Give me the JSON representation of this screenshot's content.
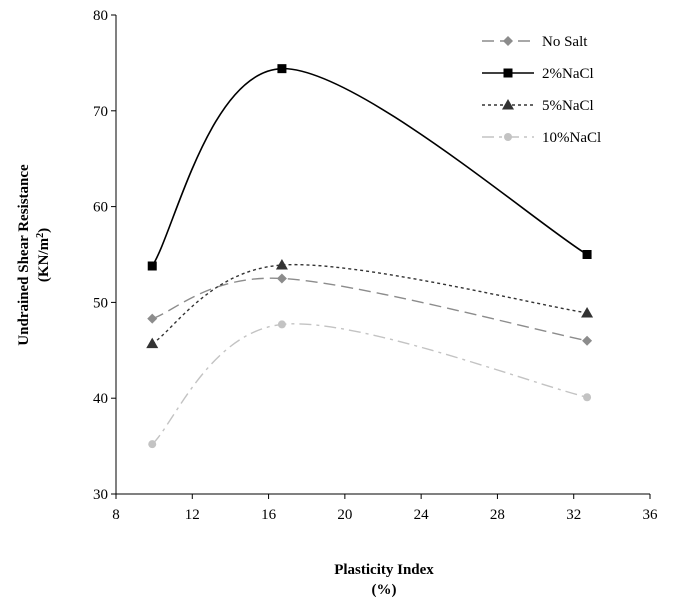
{
  "chart_data": {
    "type": "line",
    "title": "",
    "xlabel": "Plasticity Index",
    "xlabel_unit": "(%)",
    "ylabel": "Undrained Shear Resistance",
    "ylabel_unit_base": "(KN/m",
    "ylabel_unit_sup": "2",
    "ylabel_unit_end": ")",
    "xlim": [
      8,
      36
    ],
    "ylim": [
      30,
      80
    ],
    "xticks": [
      8,
      12,
      16,
      20,
      24,
      28,
      32,
      36
    ],
    "yticks": [
      30,
      40,
      50,
      60,
      70,
      80
    ],
    "grid": false,
    "legend_position": "top-right",
    "series": [
      {
        "name": "No Salt",
        "color": "#8c8c8c",
        "marker": "diamond",
        "dash": "dash",
        "x": [
          9.9,
          16.7,
          32.7
        ],
        "y": [
          48.3,
          52.5,
          46.0
        ]
      },
      {
        "name": "2%NaCl",
        "color": "#000000",
        "marker": "square",
        "dash": "solid",
        "x": [
          9.9,
          16.7,
          32.7
        ],
        "y": [
          53.8,
          74.4,
          55.0
        ]
      },
      {
        "name": "5%NaCl",
        "color": "#333333",
        "marker": "triangle",
        "dash": "dot",
        "x": [
          9.9,
          16.7,
          32.7
        ],
        "y": [
          45.7,
          53.9,
          48.9
        ]
      },
      {
        "name": "10%NaCl",
        "color": "#c3c3c3",
        "marker": "circle",
        "dash": "dashdot",
        "x": [
          9.9,
          16.7,
          32.7
        ],
        "y": [
          35.2,
          47.7,
          40.1
        ]
      }
    ]
  }
}
